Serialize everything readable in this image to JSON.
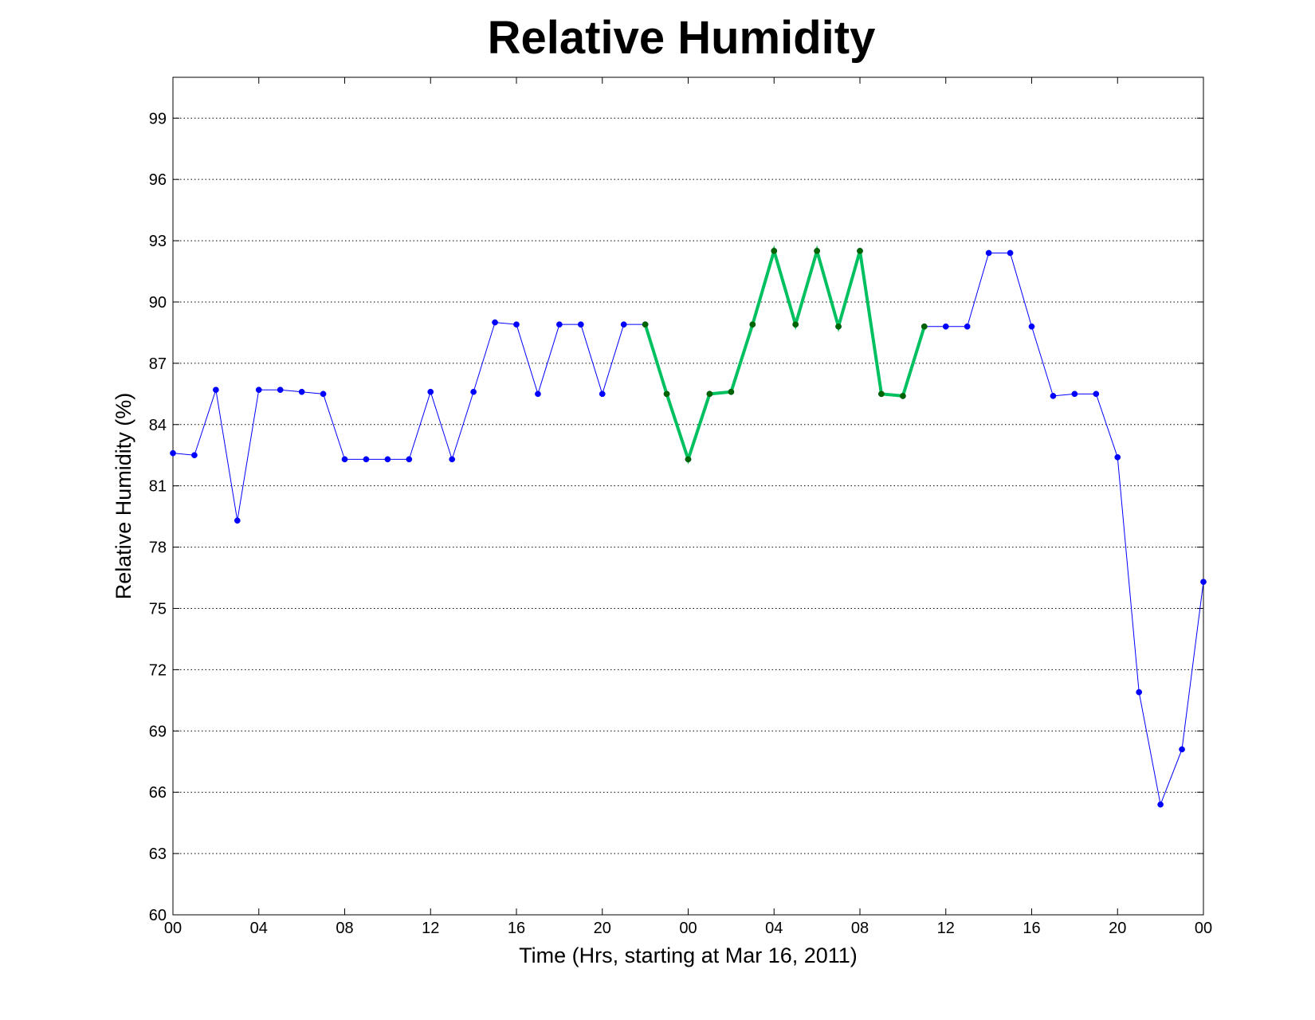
{
  "chart_data": {
    "type": "line",
    "title": "Relative Humidity",
    "xlabel": "Time (Hrs, starting at Mar 16, 2011)",
    "ylabel": "Relative Humidity (%)",
    "xlim": [
      0,
      48
    ],
    "ylim": [
      60,
      101
    ],
    "grid": "y-dotted",
    "x_ticks": [
      {
        "x": 0,
        "label": "00"
      },
      {
        "x": 4,
        "label": "04"
      },
      {
        "x": 8,
        "label": "08"
      },
      {
        "x": 12,
        "label": "12"
      },
      {
        "x": 16,
        "label": "16"
      },
      {
        "x": 20,
        "label": "20"
      },
      {
        "x": 24,
        "label": "00"
      },
      {
        "x": 28,
        "label": "04"
      },
      {
        "x": 32,
        "label": "08"
      },
      {
        "x": 36,
        "label": "12"
      },
      {
        "x": 40,
        "label": "16"
      },
      {
        "x": 44,
        "label": "20"
      },
      {
        "x": 48,
        "label": "00"
      }
    ],
    "y_ticks": [
      60,
      63,
      66,
      69,
      72,
      75,
      78,
      81,
      84,
      87,
      90,
      93,
      96,
      99
    ],
    "series": [
      {
        "color": "#0000ff",
        "marker_color": "#0000ff",
        "line_width": 1,
        "x": [
          0,
          1,
          2,
          3,
          4,
          5,
          6,
          7,
          8,
          9,
          10,
          11,
          12,
          13,
          14,
          15,
          16,
          17,
          18,
          19,
          20,
          21,
          22,
          23,
          24,
          25,
          26,
          27,
          28,
          29,
          30,
          31,
          32,
          33,
          34,
          35,
          36,
          37,
          38,
          39,
          40,
          41,
          42,
          43,
          44,
          45,
          46,
          47,
          48
        ],
        "y": [
          82.6,
          82.5,
          85.7,
          79.3,
          85.7,
          85.7,
          85.6,
          85.5,
          82.3,
          82.3,
          82.3,
          82.3,
          85.6,
          82.3,
          85.6,
          89.0,
          88.9,
          85.5,
          88.9,
          88.9,
          85.5,
          88.9,
          88.9,
          85.5,
          82.3,
          85.5,
          85.6,
          88.9,
          92.5,
          88.9,
          92.5,
          88.8,
          92.5,
          85.5,
          85.4,
          88.8,
          88.8,
          88.8,
          92.4,
          92.4,
          88.8,
          85.4,
          85.5,
          85.5,
          82.4,
          70.9,
          65.4,
          68.1,
          76.3
        ]
      },
      {
        "color": "#00c060",
        "marker_color": "#006400",
        "line_width": 4,
        "x": [
          22,
          23,
          24,
          25,
          26,
          27,
          28,
          29,
          30,
          31,
          32,
          33,
          34,
          35
        ],
        "y": [
          88.9,
          85.5,
          82.3,
          85.5,
          85.6,
          88.9,
          92.5,
          88.9,
          92.5,
          88.8,
          92.5,
          85.5,
          85.4,
          88.8
        ]
      }
    ]
  }
}
